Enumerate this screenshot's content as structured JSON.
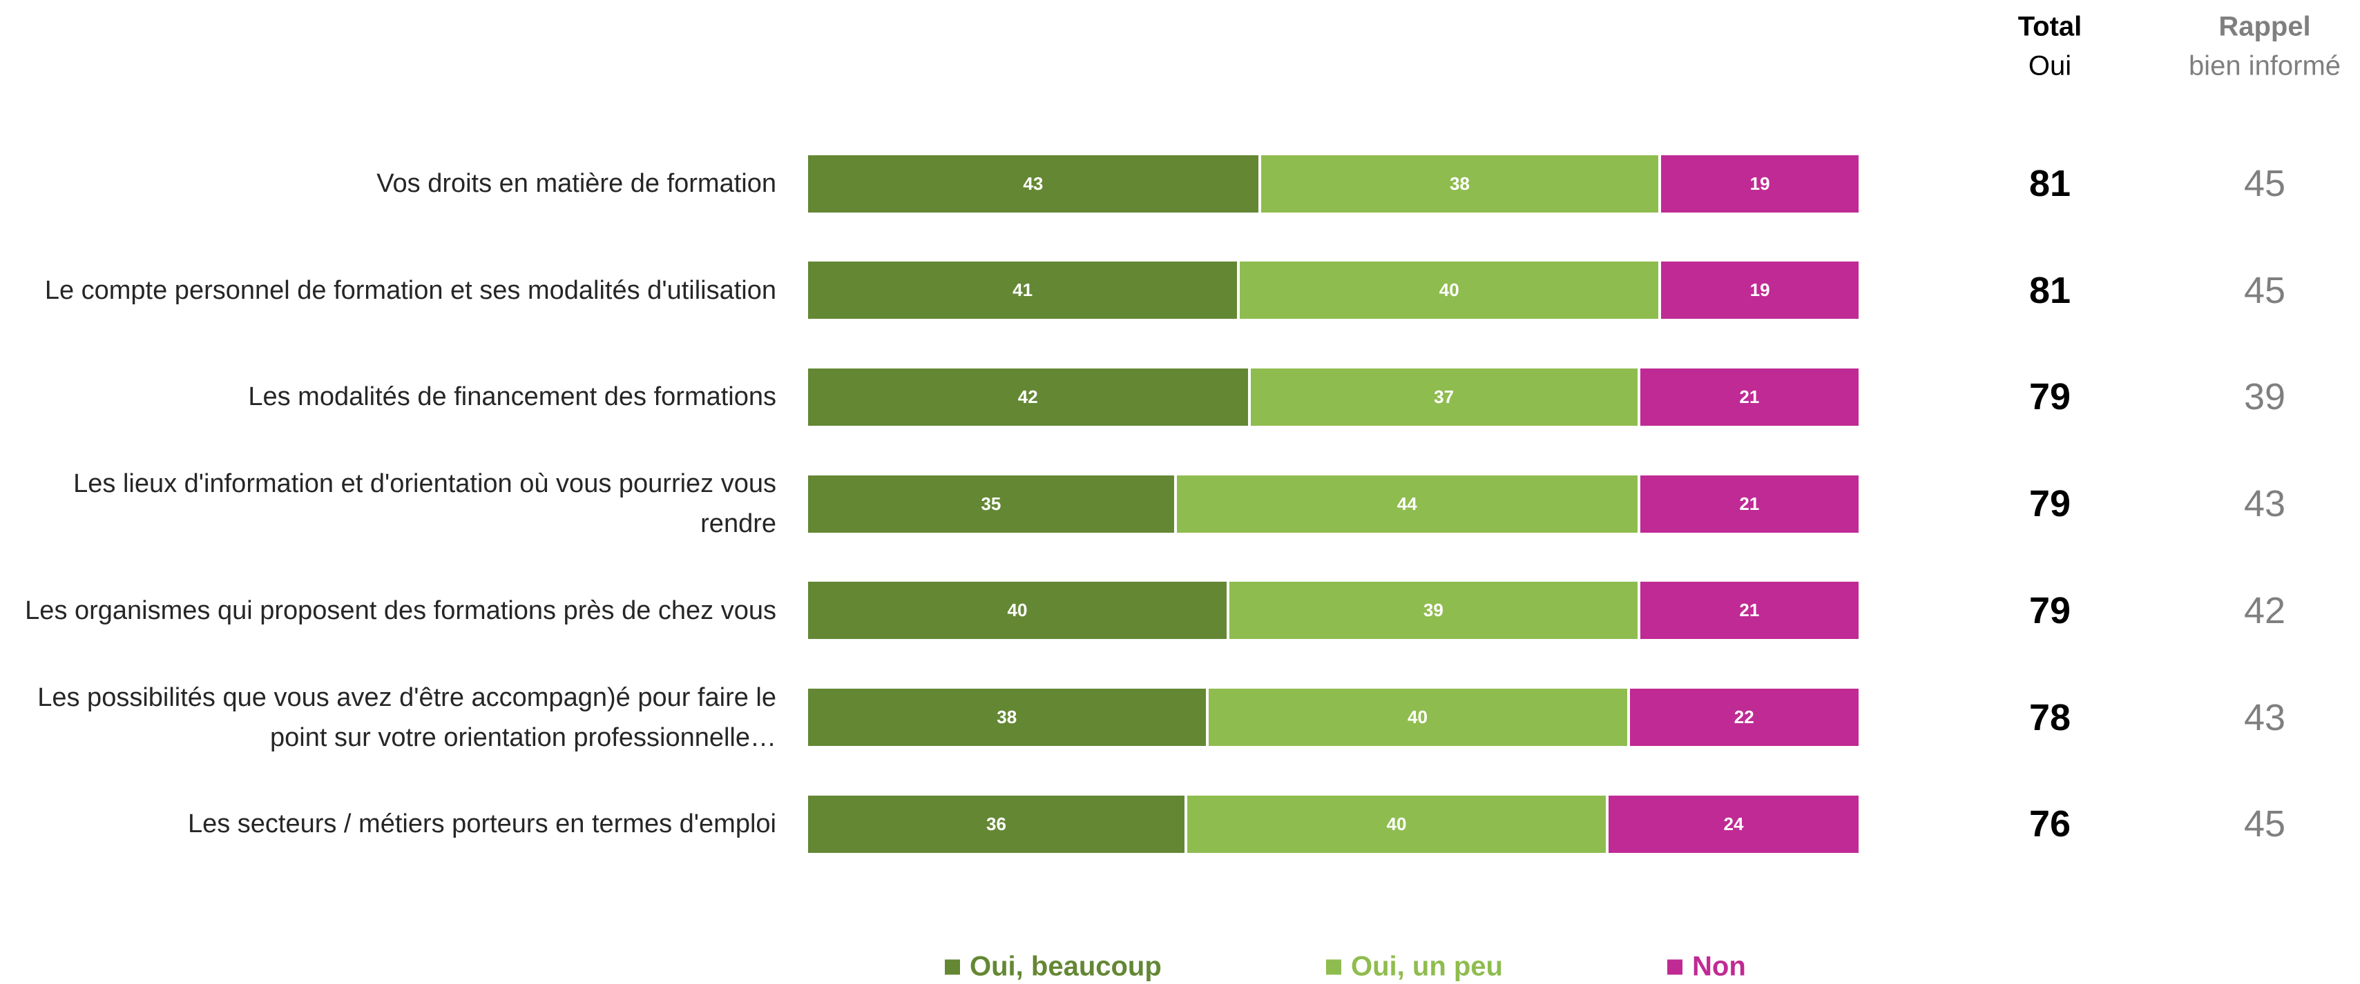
{
  "chart_data": {
    "type": "stacked-bar-horizontal",
    "categories": [
      "Vos droits en matière de formation",
      "Le compte personnel de formation et ses modalités d'utilisation",
      "Les modalités de financement des formations",
      "Les lieux d'information et d'orientation où vous pourriez vous rendre",
      "Les organismes qui proposent des formations près de chez vous",
      "Les possibilités que vous avez d'être accompagn)é pour faire le point sur votre orientation professionnelle…",
      "Les secteurs / métiers porteurs en termes d'emploi"
    ],
    "series": [
      {
        "name": "Oui, beaucoup",
        "color": "#648734",
        "values": [
          43,
          41,
          42,
          35,
          40,
          38,
          36
        ]
      },
      {
        "name": "Oui, un peu",
        "color": "#8fbc4f",
        "values": [
          38,
          40,
          37,
          44,
          39,
          40,
          40
        ]
      },
      {
        "name": "Non",
        "color": "#c02a94",
        "values": [
          19,
          19,
          21,
          21,
          21,
          22,
          24
        ]
      }
    ],
    "xlim": [
      0,
      100
    ],
    "columns": [
      {
        "header": [
          "Total",
          "Oui"
        ],
        "color": "#000000",
        "bold": true,
        "values": [
          81,
          81,
          79,
          79,
          79,
          78,
          76
        ]
      },
      {
        "header": [
          "Rappel",
          "bien informé"
        ],
        "color": "#7f7f7f",
        "bold": false,
        "values": [
          45,
          45,
          39,
          43,
          42,
          43,
          45
        ]
      }
    ]
  }
}
